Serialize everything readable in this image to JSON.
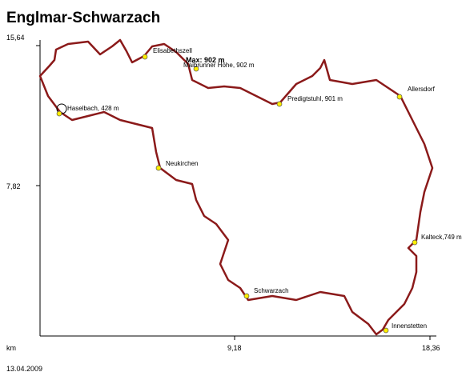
{
  "header": {
    "title": "Englmar-Schwarzach"
  },
  "axes": {
    "y_ticks": [
      "15,64",
      "7,82"
    ],
    "x_ticks": [
      "9,18",
      "18,36"
    ],
    "x_unit": "km"
  },
  "date": "13.04.2009",
  "max_label": "Max: 902 m",
  "waypoints": [
    {
      "label": "Elisabethszell"
    },
    {
      "label": "Maibrunner Höhe, 902 m"
    },
    {
      "label": "Predigtstuhl, 901 m"
    },
    {
      "label": "Allersdorf"
    },
    {
      "label": "Haselbach, 428 m"
    },
    {
      "label": "Neukirchen"
    },
    {
      "label": "Kalteck,749 m"
    },
    {
      "label": "Schwarzach"
    },
    {
      "label": "Innenstetten"
    }
  ]
}
